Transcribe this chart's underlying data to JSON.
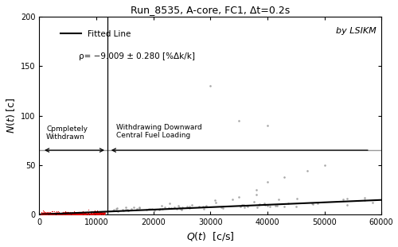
{
  "title": "Run_8535, A-core, FC1, Δt=0.2s",
  "xlabel": "$Q(t)$  [c/s]",
  "ylabel": "$N(t)$ [c]",
  "xlim": [
    0,
    60000
  ],
  "ylim": [
    0,
    200
  ],
  "by_label": "by LSIKM",
  "rho_label": "ρ= −9.009 ± 0.280 [%Δk/k]",
  "region1_label": "Cpmpletely\nWithdrawn",
  "region2_label": "Withdrawing Downward\nCentral Fuel Loading",
  "vertical_line_x": 12000,
  "horizontal_line_y": 65,
  "fitted_slope": 0.000245,
  "fitted_intercept": 0.0,
  "red_x_max": 11500,
  "background_color": "#ffffff",
  "red_color": "#dd0000",
  "gray_color": "#999999",
  "line_color": "#000000",
  "xticks": [
    0,
    10000,
    20000,
    30000,
    40000,
    50000,
    60000
  ],
  "yticks": [
    0,
    50,
    100,
    150,
    200
  ]
}
